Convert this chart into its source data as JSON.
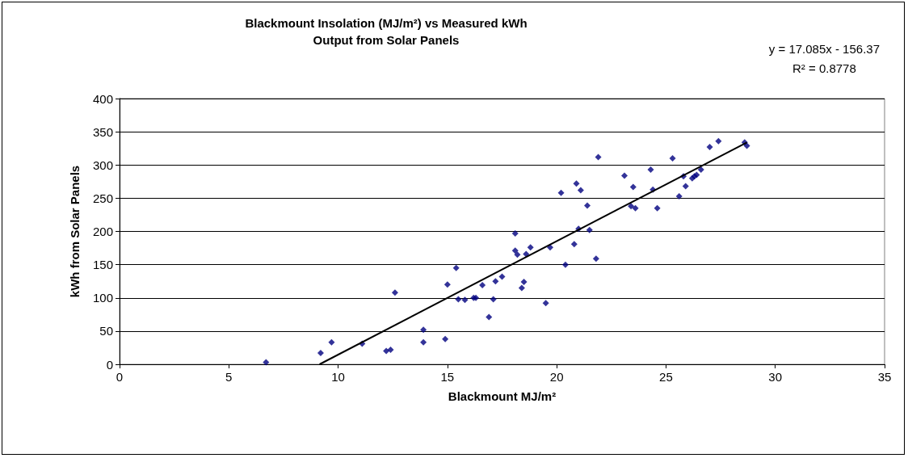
{
  "chart_data": {
    "type": "scatter",
    "title": "Blackmount Insolation (MJ/m²) vs Measured kWh\nOutput from Solar Panels",
    "xlabel": "Blackmount MJ/m²",
    "ylabel": "kWh from Solar Panels",
    "annotations": [
      "y = 17.085x - 156.37\nR² = 0.8778"
    ],
    "xlim": [
      0,
      35
    ],
    "xticks": [
      0,
      5,
      10,
      15,
      20,
      25,
      30,
      35
    ],
    "ylim": [
      0,
      400
    ],
    "yticks": [
      0,
      50,
      100,
      150,
      200,
      250,
      300,
      350,
      400
    ],
    "grid": "y",
    "series": [
      {
        "color": "#000080",
        "marker": "diamond",
        "x": [
          6.7,
          9.2,
          9.7,
          11.1,
          12.2,
          12.4,
          12.6,
          13.9,
          13.9,
          14.9,
          15.0,
          15.4,
          15.5,
          15.8,
          16.2,
          16.3,
          16.6,
          16.9,
          17.1,
          17.2,
          17.5,
          18.1,
          18.1,
          18.2,
          18.4,
          18.5,
          18.6,
          18.8,
          19.5,
          19.7,
          20.2,
          20.4,
          20.8,
          20.9,
          21.0,
          21.1,
          21.4,
          21.5,
          21.8,
          21.9,
          23.1,
          23.4,
          23.5,
          23.6,
          24.3,
          24.4,
          24.6,
          25.3,
          25.6,
          25.8,
          25.9,
          26.2,
          26.3,
          26.4,
          26.6,
          27.0,
          27.4,
          28.6,
          28.7
        ],
        "values": [
          3,
          17,
          33,
          31,
          20,
          22,
          108,
          52,
          33,
          38,
          120,
          145,
          98,
          97,
          100,
          100,
          119,
          71,
          98,
          125,
          132,
          197,
          171,
          165,
          115,
          124,
          166,
          176,
          92,
          176,
          258,
          150,
          181,
          272,
          204,
          262,
          239,
          202,
          159,
          312,
          284,
          238,
          267,
          235,
          293,
          263,
          235,
          310,
          253,
          283,
          268,
          280,
          283,
          285,
          293,
          327,
          336,
          334,
          329
        ]
      },
      {
        "type": "line",
        "color": "#000000",
        "marker": "none",
        "line_style": "solid",
        "x": [
          9.15,
          28.7
        ],
        "values": [
          0,
          334
        ]
      }
    ]
  }
}
